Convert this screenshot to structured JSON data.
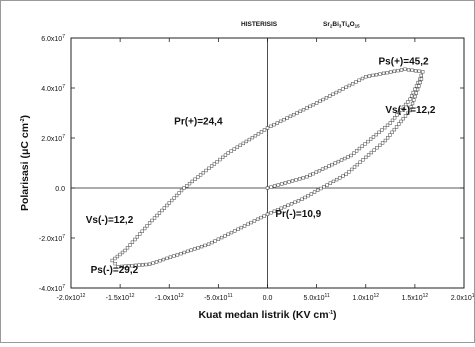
{
  "chart_data": {
    "type": "scatter",
    "title": "HISTERISIS",
    "compound_parts": [
      {
        "t": "Sr",
        "s": "2"
      },
      {
        "t": "Bi",
        "s": "3"
      },
      {
        "t": "Ti",
        "s": "4"
      },
      {
        "t": "O",
        "s": "15"
      }
    ],
    "xlabel": {
      "main": "Kuat medan listrik (KV cm",
      "sup": "-1",
      "tail": ")"
    },
    "ylabel": {
      "pre": "Polarisasi (",
      "mu": "μ",
      "mid": "C cm",
      "sup": "-2",
      "tail": ")"
    },
    "xlim": [
      -2000000000000.0,
      2000000000000.0
    ],
    "ylim": [
      -40000000.0,
      60000000.0
    ],
    "xticks": [
      {
        "v": -2000000000000.0,
        "m": "-2.0x10",
        "e": "12"
      },
      {
        "v": -1500000000000.0,
        "m": "-1.5x10",
        "e": "12"
      },
      {
        "v": -1000000000000.0,
        "m": "-1.0x10",
        "e": "12"
      },
      {
        "v": -500000000000.0,
        "m": "-5.0x10",
        "e": "11"
      },
      {
        "v": 0,
        "m": "0.0",
        "e": ""
      },
      {
        "v": 500000000000.0,
        "m": "5.0x10",
        "e": "11"
      },
      {
        "v": 1000000000000.0,
        "m": "1.0x10",
        "e": "12"
      },
      {
        "v": 1500000000000.0,
        "m": "1.5x10",
        "e": "12"
      },
      {
        "v": 2000000000000.0,
        "m": "2.0x10",
        "e": "12"
      }
    ],
    "yticks": [
      {
        "v": 60000000.0,
        "m": "6.0x10",
        "e": "7"
      },
      {
        "v": 40000000.0,
        "m": "4.0x10",
        "e": "7"
      },
      {
        "v": 20000000.0,
        "m": "2.0x10",
        "e": "7"
      },
      {
        "v": 0,
        "m": "0.0",
        "e": ""
      },
      {
        "v": -20000000.0,
        "m": "-2.0x10",
        "e": "7"
      },
      {
        "v": -40000000.0,
        "m": "-4.0x10",
        "e": "7"
      }
    ],
    "loop_vertices": [
      [
        0,
        0
      ],
      [
        400000000000.0,
        4500000.0
      ],
      [
        850000000000.0,
        13000000.0
      ],
      [
        1250000000000.0,
        26000000.0
      ],
      [
        1450000000000.0,
        35500000.0
      ],
      [
        1550000000000.0,
        43500000.0
      ],
      [
        1580000000000.0,
        46500000.0
      ],
      [
        1400000000000.0,
        47500000.0
      ],
      [
        1000000000000.0,
        44500000.0
      ],
      [
        500000000000.0,
        34000000.0
      ],
      [
        0,
        24000000.0
      ],
      [
        -400000000000.0,
        14000000.0
      ],
      [
        -850000000000.0,
        0
      ],
      [
        -1200000000000.0,
        -14000000.0
      ],
      [
        -1450000000000.0,
        -25000000.0
      ],
      [
        -1580000000000.0,
        -29000000.0
      ],
      [
        -1520000000000.0,
        -31500000.0
      ],
      [
        -1200000000000.0,
        -30500000.0
      ],
      [
        -600000000000.0,
        -22500000.0
      ],
      [
        0,
        -10500000.0
      ],
      [
        350000000000.0,
        -4500000.0
      ],
      [
        800000000000.0,
        5500000.0
      ],
      [
        1200000000000.0,
        19000000.0
      ],
      [
        1450000000000.0,
        31000000.0
      ],
      [
        1580000000000.0,
        45000000.0
      ]
    ],
    "annotations": [
      {
        "text": "Ps(+)=45,2",
        "x": 1130000000000.0,
        "y": 49500000.0
      },
      {
        "text": "Vs(+)=12,2",
        "x": 1200000000000.0,
        "y": 30000000.0
      },
      {
        "text": "Pr(+)=24,4",
        "x": -950000000000.0,
        "y": 25500000.0
      },
      {
        "text": "Vs(-)=12,2",
        "x": -1850000000000.0,
        "y": -14000000.0
      },
      {
        "text": "Ps(-)=29,2",
        "x": -1800000000000.0,
        "y": -34000000.0
      },
      {
        "text": "Pr(-)=10,9",
        "x": 80000000000.0,
        "y": -11500000.0
      }
    ]
  }
}
